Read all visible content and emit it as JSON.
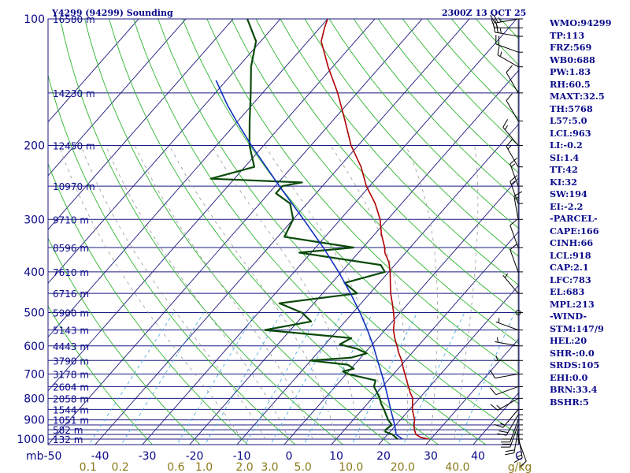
{
  "title": {
    "station": "Y4299 (94299) Sounding",
    "time": "2300Z 13 OCT 25"
  },
  "indices": [
    "WMO:94299",
    "TP:113",
    "FRZ:569",
    "WB0:688",
    "PW:1.83",
    "RH:60.5",
    "MAXT:32.5",
    "TH:5768",
    "L57:5.0",
    "LCL:963",
    "LI:-0.2",
    "SI:1.4",
    "TT:42",
    "KI:32",
    "SW:194",
    "EI:-2.2",
    "-PARCEL-",
    "CAPE:166",
    "CINH:66",
    "LCL:918",
    "CAP:2.1",
    "LFC:783",
    "EL:683",
    "MPL:213",
    "-WIND-",
    "STM:147/9",
    "HEL:20",
    "SHR-:0.0",
    "SRDS:105",
    "EHI:0.0",
    "BRN:33.4",
    "BSHR:5"
  ],
  "colors": {
    "grid_blue": "#1a1a80",
    "dry_adiabat": "#2fb52f",
    "mixing_ratio": "#50b0e0",
    "moist_adiabat": "#999999",
    "temperature": "#b00000",
    "dewpoint": "#0a4a0a",
    "parcel": "#1030c0",
    "wind": "#000000"
  },
  "chart_data": {
    "type": "skew-t",
    "pressure_range_hPa": [
      1000,
      100
    ],
    "temperature_range_C": [
      -50,
      50
    ],
    "axis_unit_left": "mb",
    "axis_unit_right": "C",
    "mixing_ratio_unit": "g/kg",
    "pressure_labels": [
      {
        "p": 100,
        "label": "100"
      },
      {
        "p": 200,
        "label": "200"
      },
      {
        "p": 300,
        "label": "300"
      },
      {
        "p": 400,
        "label": "400"
      },
      {
        "p": 500,
        "label": "500"
      },
      {
        "p": 600,
        "label": "600"
      },
      {
        "p": 700,
        "label": "700"
      },
      {
        "p": 800,
        "label": "800"
      },
      {
        "p": 900,
        "label": "900"
      },
      {
        "p": 1000,
        "label": "1000"
      }
    ],
    "isobars": [
      100,
      150,
      200,
      250,
      300,
      350,
      400,
      450,
      500,
      550,
      600,
      650,
      700,
      750,
      800,
      850,
      900,
      925,
      950,
      975,
      1000
    ],
    "height_labels": [
      {
        "p": 100,
        "label": "16580 m"
      },
      {
        "p": 150,
        "label": "14230 m"
      },
      {
        "p": 200,
        "label": "12450 m"
      },
      {
        "p": 250,
        "label": "10970 m"
      },
      {
        "p": 300,
        "label": "9710 m"
      },
      {
        "p": 350,
        "label": "8596 m"
      },
      {
        "p": 400,
        "label": "7610 m"
      },
      {
        "p": 450,
        "label": "6716 m"
      },
      {
        "p": 500,
        "label": "5900 m"
      },
      {
        "p": 550,
        "label": "5143 m"
      },
      {
        "p": 600,
        "label": "4443 m"
      },
      {
        "p": 650,
        "label": "3790 m"
      },
      {
        "p": 700,
        "label": "3178 m"
      },
      {
        "p": 750,
        "label": "2604 m"
      },
      {
        "p": 800,
        "label": "2058 m"
      },
      {
        "p": 850,
        "label": "1544 m"
      },
      {
        "p": 900,
        "label": "1051 m"
      },
      {
        "p": 950,
        "label": "582 m"
      },
      {
        "p": 1000,
        "label": "132 m"
      }
    ],
    "temperature_labels": [
      "-50",
      "-40",
      "-30",
      "-20",
      "-10",
      "0",
      "10",
      "20",
      "30",
      "40"
    ],
    "mixing_ratio_labels": [
      {
        "w": 0.1,
        "label": "0.1"
      },
      {
        "w": 0.2,
        "label": "0.2"
      },
      {
        "w": 0.6,
        "label": "0.6"
      },
      {
        "w": 1.0,
        "label": "1.0"
      },
      {
        "w": 2.0,
        "label": "2.0"
      },
      {
        "w": 3.0,
        "label": "3.0"
      },
      {
        "w": 5.0,
        "label": "5.0"
      },
      {
        "w": 10.0,
        "label": "10.0"
      },
      {
        "w": 20.0,
        "label": "20.0"
      },
      {
        "w": 40.0,
        "label": "40.0"
      }
    ],
    "temperature_profile": [
      [
        1000,
        29.5
      ],
      [
        990,
        27.5
      ],
      [
        975,
        26.0
      ],
      [
        950,
        24.8
      ],
      [
        925,
        23.8
      ],
      [
        900,
        23.0
      ],
      [
        875,
        21.8
      ],
      [
        850,
        20.6
      ],
      [
        825,
        19.6
      ],
      [
        800,
        18.6
      ],
      [
        775,
        17.0
      ],
      [
        750,
        15.5
      ],
      [
        725,
        14.0
      ],
      [
        700,
        12.4
      ],
      [
        675,
        10.8
      ],
      [
        650,
        9.2
      ],
      [
        625,
        7.3
      ],
      [
        600,
        5.5
      ],
      [
        575,
        3.6
      ],
      [
        550,
        1.8
      ],
      [
        525,
        0.4
      ],
      [
        500,
        -1.4
      ],
      [
        475,
        -3.4
      ],
      [
        450,
        -5.6
      ],
      [
        425,
        -7.6
      ],
      [
        400,
        -9.7
      ],
      [
        380,
        -11.7
      ],
      [
        360,
        -14.4
      ],
      [
        350,
        -15.4
      ],
      [
        325,
        -18.6
      ],
      [
        300,
        -21.6
      ],
      [
        275,
        -25.6
      ],
      [
        250,
        -30.7
      ],
      [
        225,
        -35.4
      ],
      [
        200,
        -41.5
      ],
      [
        175,
        -47.3
      ],
      [
        150,
        -54.1
      ],
      [
        130,
        -61.0
      ],
      [
        113,
        -67.2
      ],
      [
        105,
        -69.0
      ],
      [
        100,
        -70.0
      ]
    ],
    "dewpoint_profile": [
      [
        1000,
        23.0
      ],
      [
        975,
        21.0
      ],
      [
        960,
        19.0
      ],
      [
        950,
        18.7
      ],
      [
        925,
        19.1
      ],
      [
        900,
        17.4
      ],
      [
        875,
        16.0
      ],
      [
        850,
        14.6
      ],
      [
        825,
        13.0
      ],
      [
        800,
        11.6
      ],
      [
        775,
        10.0
      ],
      [
        750,
        8.2
      ],
      [
        725,
        7.4
      ],
      [
        700,
        0.3
      ],
      [
        690,
        -1.2
      ],
      [
        680,
        0.6
      ],
      [
        665,
        -1.4
      ],
      [
        650,
        -10.2
      ],
      [
        640,
        -2.0
      ],
      [
        625,
        0.5
      ],
      [
        610,
        -2.3
      ],
      [
        595,
        -6.9
      ],
      [
        575,
        -5.6
      ],
      [
        550,
        -25.4
      ],
      [
        525,
        -17.2
      ],
      [
        500,
        -20.8
      ],
      [
        475,
        -27.3
      ],
      [
        450,
        -12.7
      ],
      [
        425,
        -17.3
      ],
      [
        400,
        -10.8
      ],
      [
        385,
        -13.0
      ],
      [
        360,
        -32.5
      ],
      [
        350,
        -22.0
      ],
      [
        330,
        -38.6
      ],
      [
        300,
        -40.0
      ],
      [
        275,
        -43.6
      ],
      [
        260,
        -48.5
      ],
      [
        250,
        -48.5
      ],
      [
        245,
        -45.0
      ],
      [
        240,
        -65.0
      ],
      [
        225,
        -58.0
      ],
      [
        200,
        -63.0
      ],
      [
        175,
        -67.5
      ],
      [
        150,
        -72.5
      ],
      [
        130,
        -77.3
      ],
      [
        113,
        -81.0
      ],
      [
        100,
        -87.0
      ]
    ],
    "parcel_profile": [
      [
        1000,
        24.0
      ],
      [
        975,
        21.8
      ],
      [
        950,
        20.8
      ],
      [
        925,
        19.7
      ],
      [
        900,
        18.5
      ],
      [
        850,
        16.0
      ],
      [
        800,
        13.4
      ],
      [
        750,
        10.6
      ],
      [
        700,
        7.5
      ],
      [
        650,
        4.1
      ],
      [
        600,
        0.5
      ],
      [
        550,
        -3.7
      ],
      [
        500,
        -8.5
      ],
      [
        450,
        -14.1
      ],
      [
        400,
        -20.6
      ],
      [
        350,
        -28.4
      ],
      [
        300,
        -37.8
      ],
      [
        250,
        -49.1
      ],
      [
        200,
        -62.6
      ],
      [
        175,
        -70.3
      ],
      [
        160,
        -75.3
      ],
      [
        140,
        -82.2
      ]
    ],
    "wind_profile": [
      [
        1000,
        160,
        10
      ],
      [
        975,
        170,
        15
      ],
      [
        950,
        190,
        20
      ],
      [
        925,
        200,
        20
      ],
      [
        900,
        200,
        20
      ],
      [
        875,
        210,
        20
      ],
      [
        850,
        220,
        15
      ],
      [
        800,
        240,
        15
      ],
      [
        750,
        250,
        10
      ],
      [
        700,
        260,
        10
      ],
      [
        650,
        270,
        5
      ],
      [
        600,
        280,
        5
      ],
      [
        550,
        290,
        5
      ],
      [
        500,
        300,
        0
      ],
      [
        450,
        320,
        5
      ],
      [
        400,
        340,
        10
      ],
      [
        350,
        340,
        10
      ],
      [
        300,
        350,
        15
      ],
      [
        275,
        340,
        15
      ],
      [
        250,
        340,
        15
      ],
      [
        225,
        330,
        15
      ],
      [
        200,
        320,
        15
      ],
      [
        175,
        330,
        10
      ],
      [
        150,
        330,
        10
      ],
      [
        130,
        300,
        15
      ],
      [
        120,
        290,
        20
      ],
      [
        110,
        280,
        25
      ],
      [
        105,
        270,
        20
      ],
      [
        100,
        260,
        25
      ]
    ]
  }
}
